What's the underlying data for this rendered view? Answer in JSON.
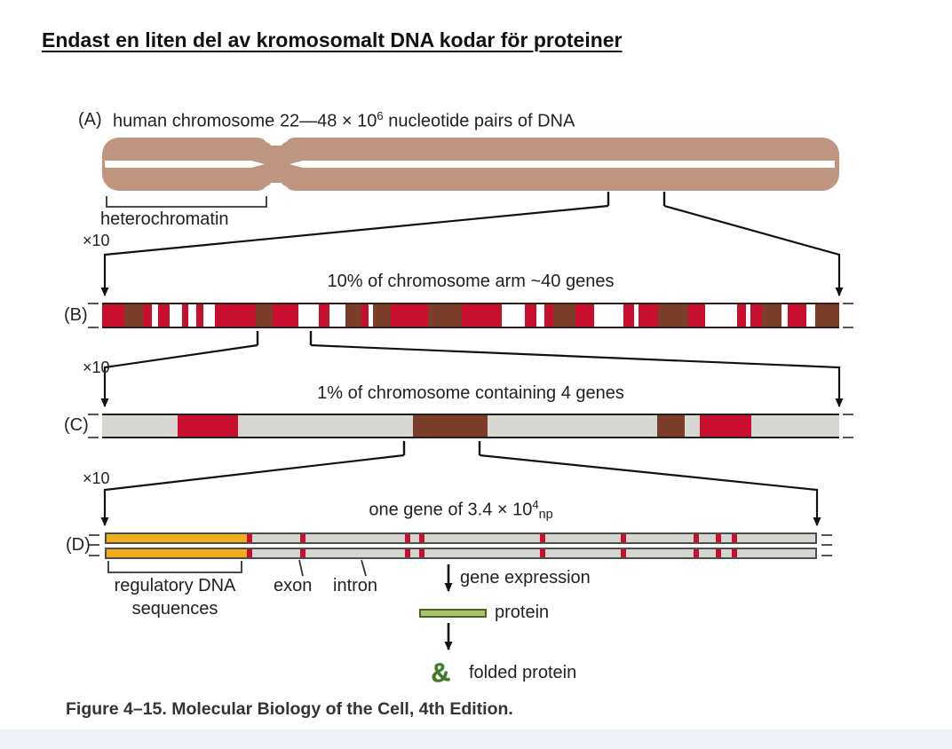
{
  "page": {
    "title": "Endast en liten del av kromosomalt DNA kodar för proteiner",
    "caption": "Figure 4–15. Molecular Biology of the Cell, 4th Edition."
  },
  "colors": {
    "chromosome": "#bf957f",
    "red": "#c8102e",
    "brown": "#7b3e28",
    "band_gray": "#d8d8d2",
    "orange": "#f0ad1e",
    "protein_fill": "#a9c46a",
    "protein_border": "#4a6420",
    "folded_green": "#3f7a28"
  },
  "colors_map": {
    "r": "#c8102e",
    "b": "#7b3e28",
    "w": "#ffffff",
    "g": "#d8d8d2"
  },
  "zoom_label": "×10",
  "panelA": {
    "label": "(A)",
    "caption_prefix": "human chromosome 22—48 × 10",
    "caption_sup": "6",
    "caption_suffix": " nucleotide pairs of DNA",
    "heterochromatin_label": "heterochromatin"
  },
  "panelB": {
    "label": "(B)",
    "caption": "10% of chromosome arm ~40 genes",
    "segments": [
      [
        "r",
        3.0
      ],
      [
        "b",
        2.6
      ],
      [
        "r",
        1.2
      ],
      [
        "w",
        0.8
      ],
      [
        "r",
        1.6
      ],
      [
        "w",
        1.6
      ],
      [
        "r",
        0.9
      ],
      [
        "w",
        1.1
      ],
      [
        "r",
        0.9
      ],
      [
        "w",
        1.6
      ],
      [
        "r",
        5.5
      ],
      [
        "b",
        2.4
      ],
      [
        "r",
        3.4
      ],
      [
        "w",
        2.8
      ],
      [
        "r",
        1.4
      ],
      [
        "w",
        2.2
      ],
      [
        "b",
        2.2
      ],
      [
        "r",
        1.0
      ],
      [
        "w",
        0.6
      ],
      [
        "b",
        2.4
      ],
      [
        "r",
        5.0
      ],
      [
        "b",
        4.6
      ],
      [
        "r",
        5.4
      ],
      [
        "w",
        3.2
      ],
      [
        "r",
        1.6
      ],
      [
        "w",
        1.0
      ],
      [
        "r",
        1.2
      ],
      [
        "b",
        3.0
      ],
      [
        "r",
        2.6
      ],
      [
        "w",
        4.0
      ],
      [
        "r",
        1.4
      ],
      [
        "w",
        0.6
      ],
      [
        "r",
        2.6
      ],
      [
        "b",
        4.2
      ],
      [
        "r",
        2.2
      ],
      [
        "w",
        4.4
      ],
      [
        "r",
        1.2
      ],
      [
        "w",
        0.6
      ],
      [
        "r",
        1.6
      ],
      [
        "b",
        2.6
      ],
      [
        "w",
        0.8
      ],
      [
        "r",
        2.6
      ],
      [
        "w",
        1.2
      ],
      [
        "b",
        3.2
      ]
    ]
  },
  "panelC": {
    "label": "(C)",
    "caption": "1% of chromosome containing 4 genes",
    "segments": [
      [
        "g",
        10.2
      ],
      [
        "r",
        8.2
      ],
      [
        "g",
        23.8
      ],
      [
        "b",
        10.1
      ],
      [
        "g",
        23.0
      ],
      [
        "b",
        3.7
      ],
      [
        "g",
        2.1
      ],
      [
        "r",
        7.0
      ],
      [
        "g",
        11.9
      ]
    ]
  },
  "panelD": {
    "label": "(D)",
    "caption_prefix": "one gene of 3.4 × 10",
    "caption_sup": "4",
    "caption_sub": "np",
    "orange_pct": 19.8,
    "stripe_pct": [
      19.8,
      27.3,
      42.1,
      44.1,
      61.1,
      72.6,
      82.8,
      86.0,
      88.2
    ],
    "labels": {
      "regulatory_line1": "regulatory DNA",
      "regulatory_line2": "sequences",
      "exon": "exon",
      "intron": "intron",
      "gene_expression": "gene expression",
      "protein": "protein",
      "folded_glyph": "&",
      "folded_protein": "folded protein"
    }
  }
}
